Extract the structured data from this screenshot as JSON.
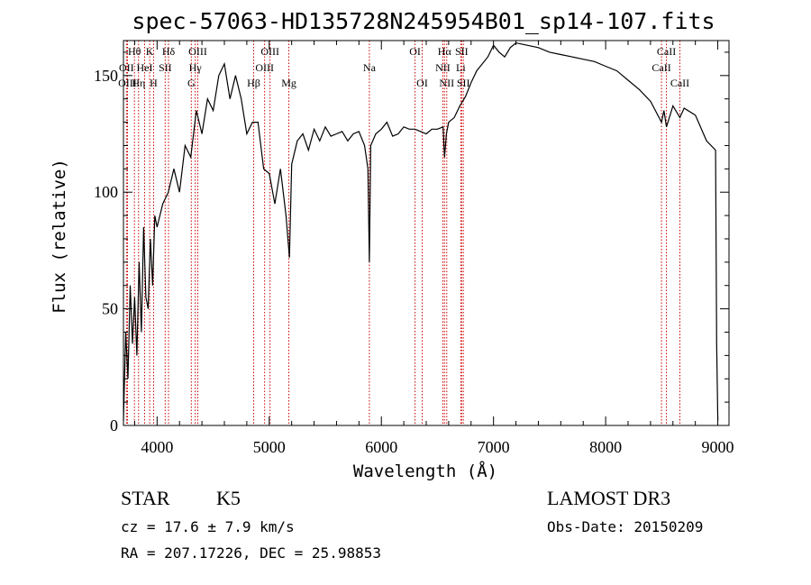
{
  "chart_data": {
    "type": "line",
    "title": "spec-57063-HD135728N245954B01_sp14-107.fits",
    "xlabel": "Wavelength (Å)",
    "ylabel": "Flux (relative)",
    "xlim": [
      3700,
      9100
    ],
    "ylim": [
      0,
      165
    ],
    "x_ticks": [
      4000,
      5000,
      6000,
      7000,
      8000,
      9000
    ],
    "y_ticks": [
      0,
      50,
      100,
      150
    ],
    "grid": false,
    "series": [
      {
        "x": [
          3700,
          3720,
          3740,
          3760,
          3780,
          3800,
          3820,
          3840,
          3860,
          3880,
          3900,
          3920,
          3940,
          3960,
          3980,
          4000,
          4050,
          4100,
          4150,
          4200,
          4250,
          4300,
          4350,
          4400,
          4450,
          4500,
          4550,
          4600,
          4650,
          4700,
          4750,
          4800,
          4850,
          4900,
          4950,
          5000,
          5050,
          5100,
          5150,
          5180,
          5200,
          5250,
          5300,
          5350,
          5400,
          5450,
          5500,
          5550,
          5600,
          5650,
          5700,
          5750,
          5800,
          5850,
          5880,
          5893,
          5905,
          5950,
          6000,
          6050,
          6100,
          6150,
          6200,
          6250,
          6300,
          6350,
          6400,
          6450,
          6500,
          6550,
          6563,
          6580,
          6600,
          6650,
          6700,
          6750,
          6800,
          6850,
          6900,
          6950,
          7000,
          7050,
          7100,
          7150,
          7200,
          7300,
          7400,
          7500,
          7600,
          7700,
          7800,
          7900,
          8000,
          8100,
          8200,
          8300,
          8400,
          8498,
          8520,
          8542,
          8600,
          8662,
          8700,
          8800,
          8900,
          8980,
          8990,
          9000
        ],
        "y": [
          2,
          40,
          20,
          60,
          35,
          55,
          30,
          70,
          40,
          85,
          55,
          50,
          80,
          60,
          90,
          85,
          95,
          100,
          110,
          100,
          120,
          115,
          135,
          125,
          140,
          135,
          150,
          155,
          140,
          150,
          140,
          125,
          130,
          130,
          110,
          108,
          95,
          110,
          90,
          72,
          112,
          122,
          125,
          118,
          127,
          122,
          128,
          124,
          125,
          126,
          122,
          125,
          126,
          120,
          110,
          70,
          120,
          125,
          127,
          130,
          124,
          125,
          128,
          127,
          127,
          126,
          125,
          127,
          127,
          128,
          115,
          125,
          130,
          132,
          137,
          141,
          147,
          152,
          155,
          158,
          163,
          160,
          158,
          162,
          164,
          163,
          162,
          160,
          159,
          158,
          157,
          156,
          154,
          152,
          148,
          144,
          139,
          130,
          135,
          128,
          137,
          132,
          136,
          133,
          122,
          118,
          35,
          2
        ]
      }
    ],
    "spectral_lines": [
      {
        "label": "Hθ",
        "x": 3798,
        "row": 0
      },
      {
        "label": "OII",
        "x": 3727,
        "row": 1
      },
      {
        "label": "OIII",
        "x": 3736,
        "row": 2
      },
      {
        "label": "K",
        "x": 3934,
        "row": 0
      },
      {
        "label": "HeI",
        "x": 3889,
        "row": 1
      },
      {
        "label": "Hη",
        "x": 3835,
        "row": 2
      },
      {
        "label": "H",
        "x": 3969,
        "row": 2
      },
      {
        "label": "SII",
        "x": 4072,
        "row": 1
      },
      {
        "label": "Hδ",
        "x": 4102,
        "row": 0
      },
      {
        "label": "OIII",
        "x": 4363,
        "row": 0
      },
      {
        "label": "Hγ",
        "x": 4340,
        "row": 1
      },
      {
        "label": "G",
        "x": 4305,
        "row": 2
      },
      {
        "label": "OIII",
        "x": 5007,
        "row": 0
      },
      {
        "label": "OIII",
        "x": 4959,
        "row": 1
      },
      {
        "label": "Hβ",
        "x": 4861,
        "row": 2
      },
      {
        "label": "Mg",
        "x": 5175,
        "row": 2
      },
      {
        "label": "Na",
        "x": 5893,
        "row": 1
      },
      {
        "label": "OI",
        "x": 6300,
        "row": 0
      },
      {
        "label": "OI",
        "x": 6364,
        "row": 2
      },
      {
        "label": "Hα",
        "x": 6563,
        "row": 0
      },
      {
        "label": "SII",
        "x": 6716,
        "row": 0
      },
      {
        "label": "NII",
        "x": 6548,
        "row": 1
      },
      {
        "label": "Li",
        "x": 6708,
        "row": 1
      },
      {
        "label": "NII",
        "x": 6583,
        "row": 2
      },
      {
        "label": "SII",
        "x": 6731,
        "row": 2
      },
      {
        "label": "CaII",
        "x": 8542,
        "row": 0
      },
      {
        "label": "CaII",
        "x": 8498,
        "row": 1
      },
      {
        "label": "CaII",
        "x": 8662,
        "row": 2
      }
    ],
    "line_color": "#000000",
    "marker_color": "#cc0000"
  },
  "info": {
    "object_class": "STAR",
    "subclass": "K5",
    "survey": "LAMOST DR3",
    "cz": "cz = 17.6 ± 7.9 km/s",
    "obs_date": "Obs-Date: 20150209",
    "coords": "RA = 207.17226, DEC =  25.98853"
  }
}
